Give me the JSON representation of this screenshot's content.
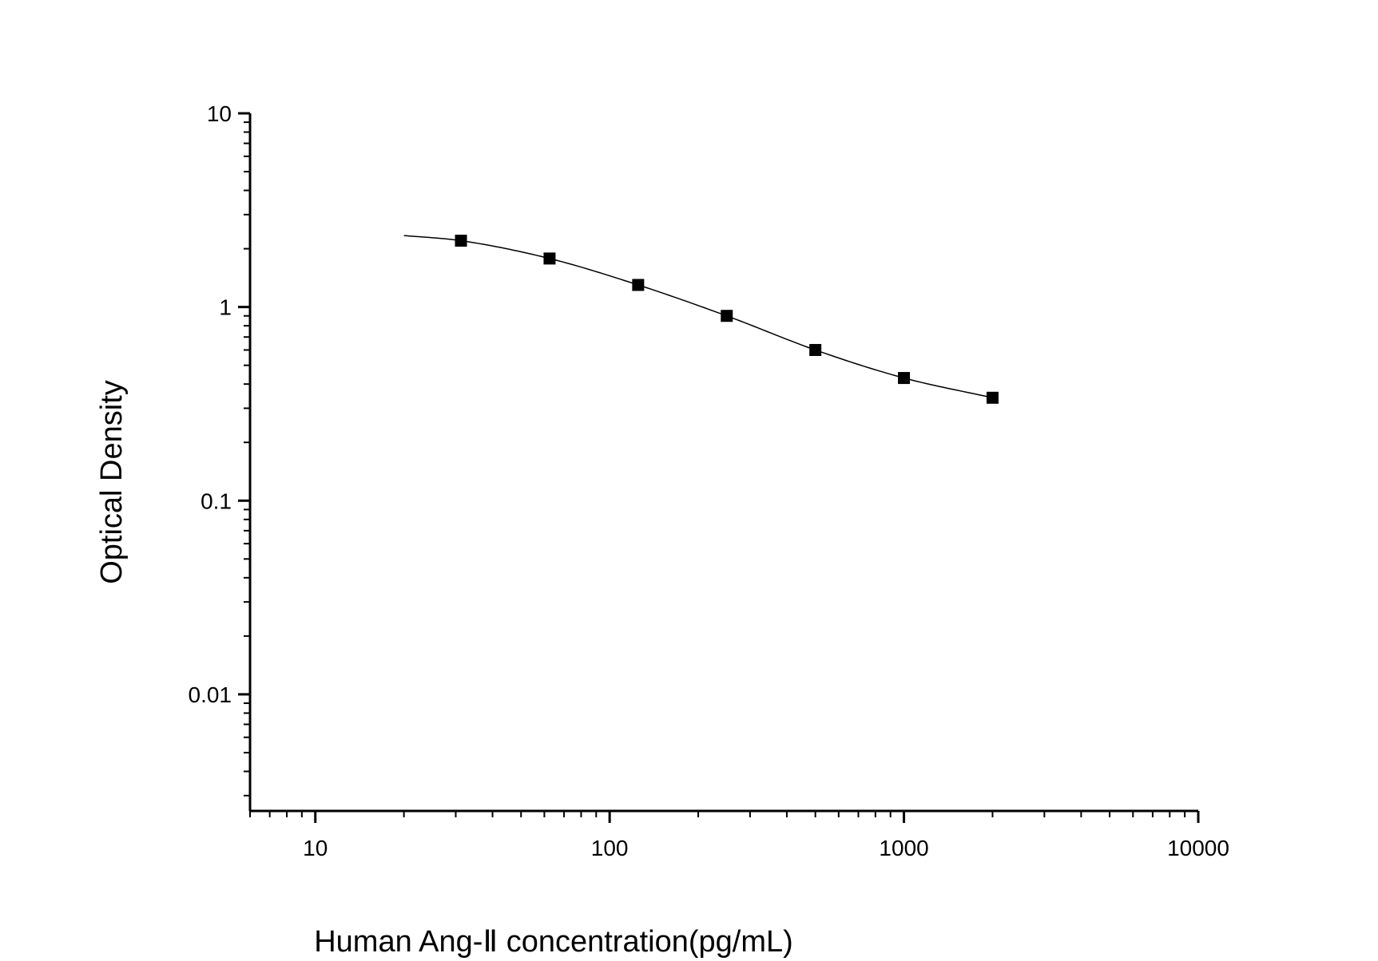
{
  "chart_data": {
    "type": "scatter",
    "title": "",
    "xlabel": "Human Ang-Ⅱ concentration(pg/mL)",
    "ylabel": "Optical Density",
    "xscale": "log",
    "yscale": "log",
    "xlim": [
      6,
      10000
    ],
    "ylim": [
      0.0025,
      10
    ],
    "x_ticks": [
      "10",
      "100",
      "1000",
      "10000"
    ],
    "y_ticks": [
      "10",
      "1",
      "0.1",
      "0.01"
    ],
    "grid": false,
    "legend": "none",
    "series": [
      {
        "x": [
          31.25,
          62.5,
          125,
          250,
          500,
          1000,
          2000
        ],
        "y": [
          2.2,
          1.78,
          1.3,
          0.9,
          0.6,
          0.43,
          0.34
        ],
        "marker": "square",
        "fit_curve": true,
        "fit_x_range": [
          20,
          2000
        ],
        "color": "#000000"
      }
    ]
  }
}
